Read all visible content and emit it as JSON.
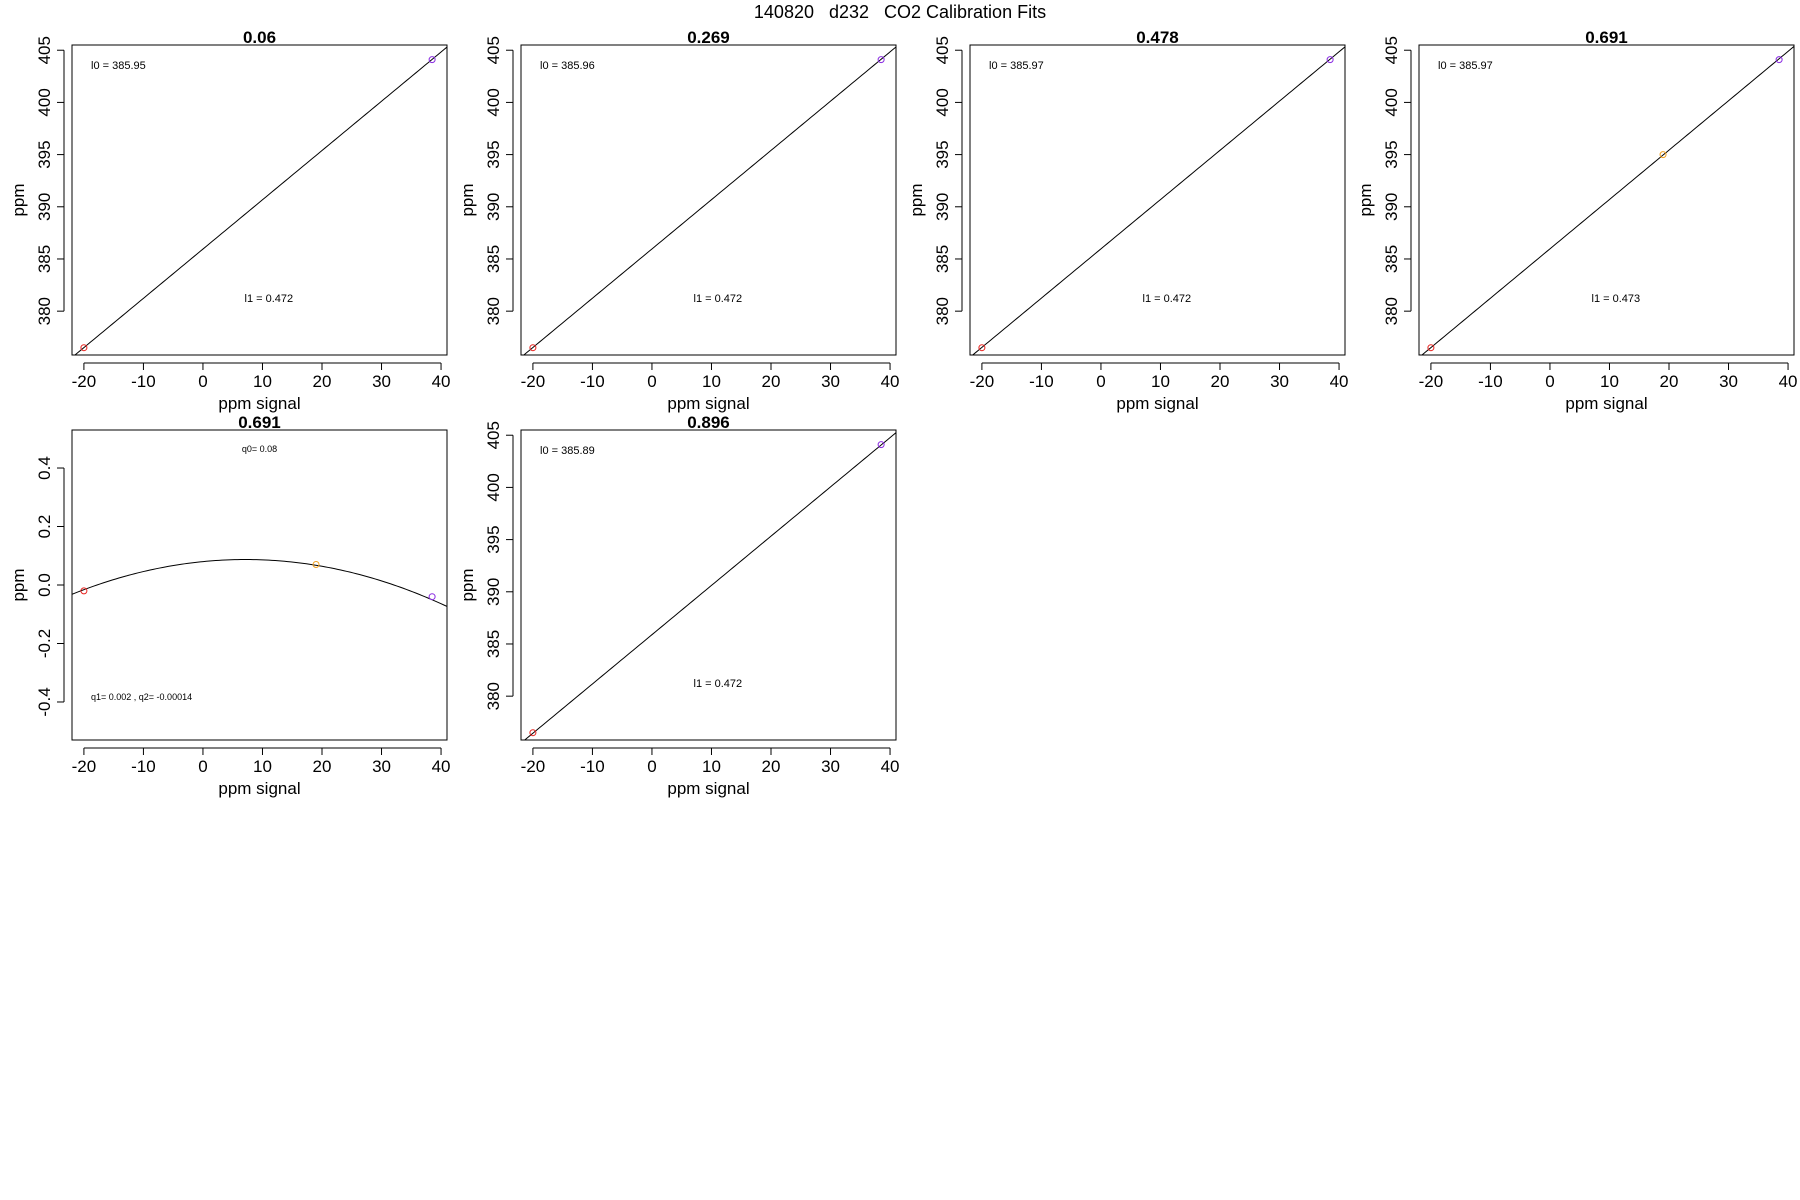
{
  "figure_title": "140820   d232   CO2 Calibration Fits",
  "colors": {
    "axis": "#000000",
    "fit_line": "#000000",
    "point_low": "#e8221e",
    "point_mid": "#f0a020",
    "point_high": "#8a2be2"
  },
  "chart_data": [
    {
      "type": "scatter",
      "title": "0.06",
      "xlabel": "ppm signal",
      "ylabel": "ppm",
      "xlim": [
        -22,
        41
      ],
      "ylim": [
        375.8,
        405.5
      ],
      "xticks": [
        -20,
        -10,
        0,
        10,
        20,
        30,
        40
      ],
      "yticks": [
        380,
        385,
        390,
        395,
        400,
        405
      ],
      "fit": {
        "kind": "linear",
        "intercept": 385.95,
        "slope": 0.472
      },
      "points": [
        {
          "x": -20,
          "y": 376.5,
          "color": "low"
        },
        {
          "x": 38.5,
          "y": 404.1,
          "color": "high"
        }
      ],
      "annotations": {
        "top": "l0 =  385.95",
        "bottom": "l1 =  0.472"
      }
    },
    {
      "type": "scatter",
      "title": "0.269",
      "xlabel": "ppm signal",
      "ylabel": "ppm",
      "xlim": [
        -22,
        41
      ],
      "ylim": [
        375.8,
        405.5
      ],
      "xticks": [
        -20,
        -10,
        0,
        10,
        20,
        30,
        40
      ],
      "yticks": [
        380,
        385,
        390,
        395,
        400,
        405
      ],
      "fit": {
        "kind": "linear",
        "intercept": 385.96,
        "slope": 0.472
      },
      "points": [
        {
          "x": -20,
          "y": 376.5,
          "color": "low"
        },
        {
          "x": 38.5,
          "y": 404.1,
          "color": "high"
        }
      ],
      "annotations": {
        "top": "l0 =  385.96",
        "bottom": "l1 =  0.472"
      }
    },
    {
      "type": "scatter",
      "title": "0.478",
      "xlabel": "ppm signal",
      "ylabel": "ppm",
      "xlim": [
        -22,
        41
      ],
      "ylim": [
        375.8,
        405.5
      ],
      "xticks": [
        -20,
        -10,
        0,
        10,
        20,
        30,
        40
      ],
      "yticks": [
        380,
        385,
        390,
        395,
        400,
        405
      ],
      "fit": {
        "kind": "linear",
        "intercept": 385.97,
        "slope": 0.472
      },
      "points": [
        {
          "x": -20,
          "y": 376.5,
          "color": "low"
        },
        {
          "x": 38.5,
          "y": 404.1,
          "color": "high"
        }
      ],
      "annotations": {
        "top": "l0 =  385.97",
        "bottom": "l1 =  0.472"
      }
    },
    {
      "type": "scatter",
      "title": "0.691",
      "xlabel": "ppm signal",
      "ylabel": "ppm",
      "xlim": [
        -22,
        41
      ],
      "ylim": [
        375.8,
        405.5
      ],
      "xticks": [
        -20,
        -10,
        0,
        10,
        20,
        30,
        40
      ],
      "yticks": [
        380,
        385,
        390,
        395,
        400,
        405
      ],
      "fit": {
        "kind": "linear",
        "intercept": 385.97,
        "slope": 0.473
      },
      "points": [
        {
          "x": -20,
          "y": 376.5,
          "color": "low"
        },
        {
          "x": 19,
          "y": 395.0,
          "color": "mid"
        },
        {
          "x": 38.5,
          "y": 404.1,
          "color": "high"
        }
      ],
      "annotations": {
        "top": "l0 =  385.97",
        "bottom": "l1 =  0.473"
      }
    },
    {
      "type": "scatter",
      "title": "0.691",
      "xlabel": "ppm signal",
      "ylabel": "ppm",
      "xlim": [
        -22,
        41
      ],
      "ylim": [
        -0.53,
        0.53
      ],
      "xticks": [
        -20,
        -10,
        0,
        10,
        20,
        30,
        40
      ],
      "yticks": [
        -0.4,
        -0.2,
        0.0,
        0.2,
        0.4
      ],
      "ytick_labels": [
        "-0.4",
        "-0.2",
        "0.0",
        "0.2",
        "0.4"
      ],
      "fit": {
        "kind": "quadratic",
        "q0": 0.08,
        "q1": 0.002,
        "q2": -0.00014
      },
      "points": [
        {
          "x": -20,
          "y": -0.02,
          "color": "low"
        },
        {
          "x": 19,
          "y": 0.07,
          "color": "mid"
        },
        {
          "x": 38.5,
          "y": -0.04,
          "color": "high"
        }
      ],
      "annotations": {
        "top": "q0= 0.08",
        "bottom": "q1= 0.002 , q2= -0.00014"
      }
    },
    {
      "type": "scatter",
      "title": "0.896",
      "xlabel": "ppm signal",
      "ylabel": "ppm",
      "xlim": [
        -22,
        41
      ],
      "ylim": [
        375.8,
        405.5
      ],
      "xticks": [
        -20,
        -10,
        0,
        10,
        20,
        30,
        40
      ],
      "yticks": [
        380,
        385,
        390,
        395,
        400,
        405
      ],
      "fit": {
        "kind": "linear",
        "intercept": 385.89,
        "slope": 0.472
      },
      "points": [
        {
          "x": -20,
          "y": 376.5,
          "color": "low"
        },
        {
          "x": 38.5,
          "y": 404.1,
          "color": "high"
        }
      ],
      "annotations": {
        "top": "l0 =  385.89",
        "bottom": "l1 =  0.472"
      }
    }
  ]
}
